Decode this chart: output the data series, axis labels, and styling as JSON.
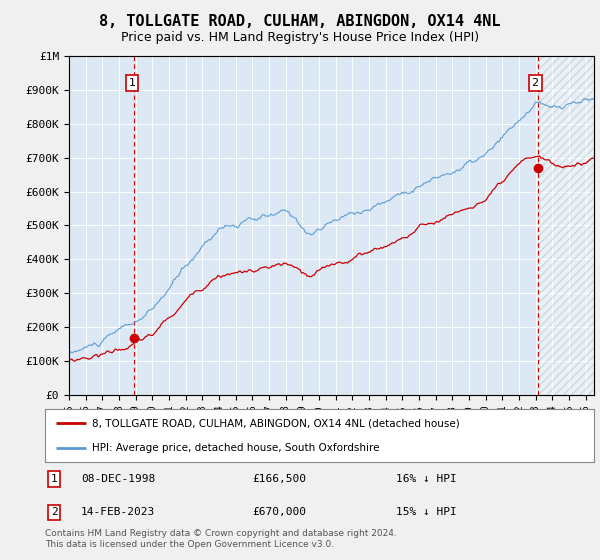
{
  "title": "8, TOLLGATE ROAD, CULHAM, ABINGDON, OX14 4NL",
  "subtitle": "Price paid vs. HM Land Registry's House Price Index (HPI)",
  "ylabel_ticks": [
    "£0",
    "£100K",
    "£200K",
    "£300K",
    "£400K",
    "£500K",
    "£600K",
    "£700K",
    "£800K",
    "£900K",
    "£1M"
  ],
  "ytick_vals": [
    0,
    100000,
    200000,
    300000,
    400000,
    500000,
    600000,
    700000,
    800000,
    900000,
    1000000
  ],
  "ylim": [
    0,
    1000000
  ],
  "xlim_start": 1995.0,
  "xlim_end": 2026.5,
  "hpi_color": "#5b9bd5",
  "price_color": "#cc0000",
  "sale1_x": 1998.92,
  "sale1_y": 166500,
  "sale2_x": 2023.12,
  "sale2_y": 670000,
  "legend_line1": "8, TOLLGATE ROAD, CULHAM, ABINGDON, OX14 4NL (detached house)",
  "legend_line2": "HPI: Average price, detached house, South Oxfordshire",
  "table_row1": [
    "1",
    "08-DEC-1998",
    "£166,500",
    "16% ↓ HPI"
  ],
  "table_row2": [
    "2",
    "14-FEB-2023",
    "£670,000",
    "15% ↓ HPI"
  ],
  "footer": "Contains HM Land Registry data © Crown copyright and database right 2024.\nThis data is licensed under the Open Government Licence v3.0.",
  "background_color": "#f0f0f0",
  "plot_bg_color": "#dce9f5",
  "grid_color": "#ffffff",
  "vline_color": "#cc0000",
  "title_fontsize": 11,
  "subtitle_fontsize": 9
}
